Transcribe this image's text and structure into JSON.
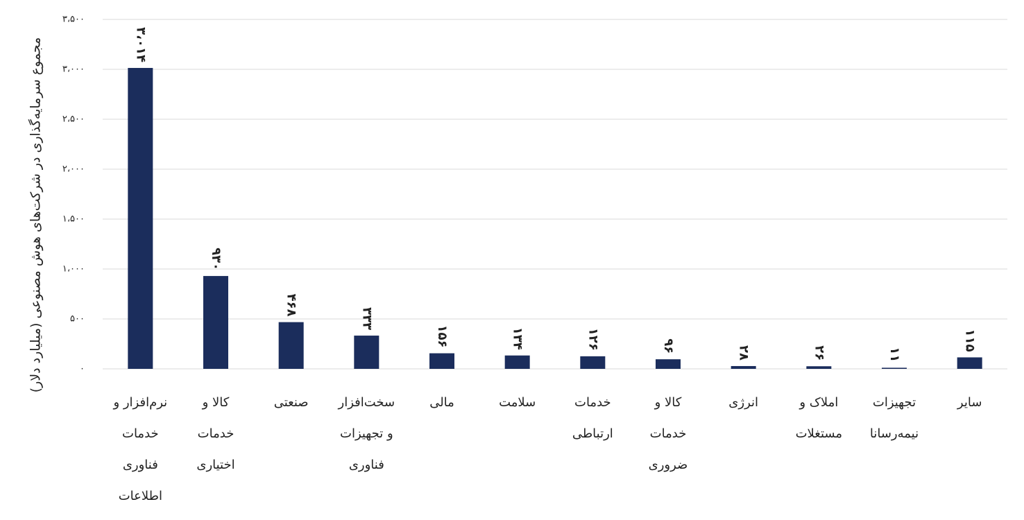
{
  "chart_data": {
    "type": "bar",
    "ylabel": "مجموع سرمایه‌گذاری در شرکت‌های هوش مصنوعی (میلیارد دلار)",
    "categories": [
      "نرم‌افزار و خدمات فناوری اطلاعات",
      "کالا و خدمات اختیاری",
      "صنعتی",
      "سخت‌افزار و تجهیزات فناوری",
      "مالی",
      "سلامت",
      "خدمات ارتباطی",
      "کالا و خدمات ضروری",
      "انرژی",
      "املاک و مستغلات",
      "تجهیزات نیمه‌رسانا",
      "سایر"
    ],
    "values": [
      3014,
      930,
      468,
      333,
      156,
      134,
      126,
      96,
      28,
      26,
      11,
      115
    ],
    "value_labels": [
      "۳،۰۱۴",
      "۹۳۰",
      "۴۶۸",
      "۳۳۳",
      "۱۵۶",
      "۱۳۴",
      "۱۲۶",
      "۹۶",
      "۲۸",
      "۲۶",
      "۱۱",
      "۱۱۵"
    ],
    "color": "#1b2d5c",
    "ylim": [
      0,
      3500
    ],
    "yticks": [
      {
        "value": 0,
        "label": "۰"
      },
      {
        "value": 500,
        "label": "۵۰۰"
      },
      {
        "value": 1000,
        "label": "۱،۰۰۰"
      },
      {
        "value": 1500,
        "label": "۱،۵۰۰"
      },
      {
        "value": 2000,
        "label": "۲،۰۰۰"
      },
      {
        "value": 2500,
        "label": "۲،۵۰۰"
      },
      {
        "value": 3000,
        "label": "۳،۰۰۰"
      },
      {
        "value": 3500,
        "label": "۳،۵۰۰"
      }
    ],
    "grid": true
  }
}
